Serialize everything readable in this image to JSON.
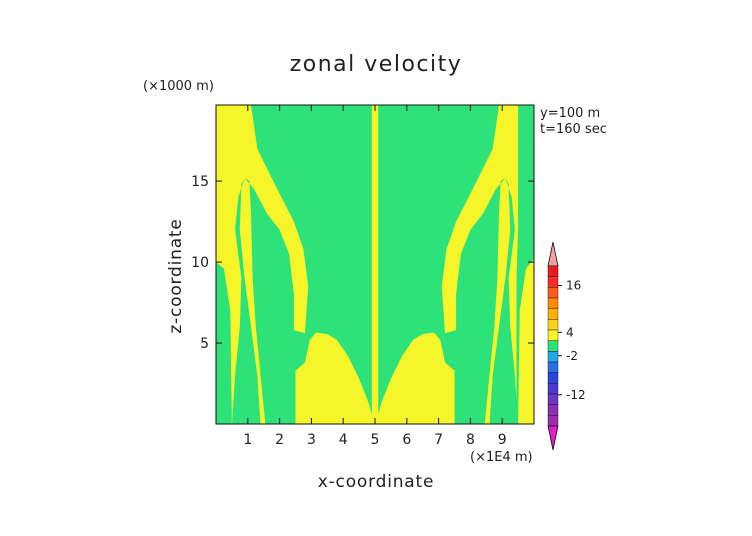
{
  "chart_data": {
    "type": "heatmap",
    "title": "zonal velocity",
    "xlabel": "x-coordinate",
    "ylabel": "z-coordinate",
    "x_unit": "(×1E4 m)",
    "z_unit": "(×1000 m)",
    "annotations": [
      "y=100 m",
      "t=160 sec"
    ],
    "xlim": [
      0,
      10
    ],
    "ylim": [
      0,
      19.7
    ],
    "x_ticks": [
      "1",
      "2",
      "3",
      "4",
      "5",
      "6",
      "7",
      "8",
      "9"
    ],
    "y_ticks": [
      "5",
      "10",
      "15"
    ],
    "grid": false,
    "colors": {
      "positive": "#f5f52a",
      "negative": "#2ee27a",
      "outline": "#111111"
    },
    "colorbar": {
      "labels": [
        "16",
        "4",
        "-2",
        "-12"
      ],
      "label_values": [
        16,
        4,
        -2,
        -12
      ],
      "range": [
        -20,
        21
      ],
      "colors": [
        "#9c2ca8",
        "#8a2fb4",
        "#6d35c4",
        "#4a39d2",
        "#2a44e0",
        "#2a6fe6",
        "#22a8e8",
        "#2ee27a",
        "#f5f52a",
        "#ffd21e",
        "#ffb000",
        "#ff8a00",
        "#ff5a1a",
        "#ff2a2a",
        "#e81c1c"
      ],
      "lower_tip_color": "#e020c8",
      "upper_tip_color": "#f5a0a0"
    },
    "regions": [
      {
        "sign": "positive",
        "points": [
          [
            0,
            19.7
          ],
          [
            1.05,
            19.7
          ],
          [
            1.15,
            17.5
          ],
          [
            1.6,
            15
          ],
          [
            2.3,
            12.5
          ],
          [
            2.6,
            10.5
          ],
          [
            2.75,
            8.5
          ],
          [
            2.8,
            6
          ],
          [
            3.15,
            5.75
          ],
          [
            3.55,
            5.6
          ],
          [
            3.95,
            5
          ],
          [
            4.3,
            3.9
          ],
          [
            4.6,
            2.5
          ],
          [
            4.85,
            1.1
          ],
          [
            4.95,
            0.3
          ],
          [
            5.05,
            0.3
          ],
          [
            5.15,
            1.1
          ],
          [
            5.4,
            2.5
          ],
          [
            5.7,
            3.9
          ],
          [
            6.05,
            5
          ],
          [
            6.45,
            5.6
          ],
          [
            6.85,
            5.75
          ],
          [
            7.2,
            6
          ],
          [
            7.25,
            8.5
          ],
          [
            7.4,
            10.5
          ],
          [
            7.7,
            12.5
          ],
          [
            8.4,
            15
          ],
          [
            8.85,
            17.5
          ],
          [
            8.95,
            19.7
          ],
          [
            10,
            19.7
          ],
          [
            10,
            10
          ],
          [
            9.75,
            9.5
          ],
          [
            9.6,
            7
          ],
          [
            9.45,
            0
          ],
          [
            8.5,
            0
          ],
          [
            8.6,
            2
          ],
          [
            8.7,
            5
          ],
          [
            8.8,
            9
          ],
          [
            8.85,
            13
          ],
          [
            8.95,
            15
          ],
          [
            9.05,
            15.2
          ],
          [
            9.2,
            14.8
          ],
          [
            9.25,
            12
          ],
          [
            9.1,
            9
          ],
          [
            8.9,
            6
          ],
          [
            8.7,
            3
          ],
          [
            8.6,
            0
          ],
          [
            7.55,
            0
          ],
          [
            7.55,
            3
          ],
          [
            7.8,
            3.8
          ],
          [
            7.9,
            5.5
          ],
          [
            8.0,
            8
          ],
          [
            8.3,
            11
          ],
          [
            8.7,
            14
          ],
          [
            9.0,
            15.2
          ],
          [
            9.2,
            14.8
          ],
          [
            9.3,
            13
          ],
          [
            9.3,
            12
          ],
          [
            9.6,
            7
          ],
          [
            9.45,
            0
          ],
          [
            8.5,
            0
          ],
          [
            8.4,
            3
          ],
          [
            8.2,
            4
          ],
          [
            7.75,
            5.5
          ],
          [
            7.55,
            7
          ],
          [
            7.45,
            10
          ],
          [
            7.15,
            12
          ],
          [
            6.7,
            14
          ],
          [
            6.2,
            16
          ],
          [
            5.8,
            18
          ],
          [
            5.7,
            19.7
          ],
          [
            5.0,
            19.7
          ],
          [
            5.0,
            0
          ],
          [
            4.9,
            0
          ],
          [
            4.9,
            19.7
          ],
          [
            4.3,
            19.7
          ],
          [
            4.2,
            18
          ],
          [
            3.8,
            16
          ],
          [
            3.3,
            14
          ],
          [
            2.85,
            12
          ],
          [
            2.55,
            10
          ],
          [
            2.45,
            7
          ],
          [
            2.25,
            5.5
          ],
          [
            1.8,
            4
          ],
          [
            1.6,
            3
          ],
          [
            1.55,
            0
          ],
          [
            0.5,
            0
          ],
          [
            0.4,
            3
          ],
          [
            0.3,
            7
          ],
          [
            0.25,
            9.5
          ],
          [
            0,
            10
          ]
        ]
      },
      {
        "sign": "negative",
        "points": [
          [
            1.1,
            19.7
          ],
          [
            4.9,
            19.7
          ],
          [
            4.9,
            0.6
          ],
          [
            4.8,
            1.3
          ],
          [
            4.5,
            2.8
          ],
          [
            4.15,
            4.2
          ],
          [
            3.8,
            5.2
          ],
          [
            3.5,
            5.55
          ],
          [
            3.15,
            5.65
          ],
          [
            2.95,
            5.2
          ],
          [
            2.8,
            3.8
          ],
          [
            2.5,
            3.3
          ],
          [
            2.5,
            0
          ],
          [
            1.55,
            0
          ],
          [
            1.4,
            3
          ],
          [
            1.25,
            6
          ],
          [
            1.15,
            9
          ],
          [
            1.1,
            13
          ],
          [
            1.05,
            15
          ],
          [
            0.9,
            15.2
          ],
          [
            0.8,
            14.8
          ],
          [
            0.75,
            12
          ],
          [
            0.9,
            9
          ],
          [
            1.1,
            6
          ],
          [
            1.3,
            3
          ],
          [
            1.4,
            0
          ],
          [
            0.5,
            0
          ],
          [
            0.6,
            3
          ],
          [
            0.75,
            6
          ],
          [
            0.8,
            9
          ],
          [
            0.6,
            12
          ],
          [
            0.7,
            14
          ],
          [
            0.9,
            15.2
          ],
          [
            1.2,
            14.5
          ],
          [
            1.6,
            13
          ],
          [
            2.0,
            12
          ],
          [
            2.3,
            10.5
          ],
          [
            2.45,
            8
          ],
          [
            2.45,
            5.8
          ],
          [
            2.8,
            5.6
          ],
          [
            2.9,
            8.5
          ],
          [
            2.75,
            10.8
          ],
          [
            2.45,
            12.5
          ],
          [
            1.8,
            15
          ],
          [
            1.3,
            17
          ],
          [
            1.1,
            19.7
          ]
        ]
      },
      {
        "sign": "negative",
        "points": [
          [
            5.1,
            19.7
          ],
          [
            8.9,
            19.7
          ],
          [
            8.7,
            17
          ],
          [
            8.2,
            15
          ],
          [
            7.55,
            12.5
          ],
          [
            7.25,
            10.8
          ],
          [
            7.1,
            8.5
          ],
          [
            7.2,
            5.6
          ],
          [
            7.55,
            5.8
          ],
          [
            7.55,
            8
          ],
          [
            7.7,
            10.5
          ],
          [
            8.0,
            12
          ],
          [
            8.4,
            13
          ],
          [
            8.8,
            14.5
          ],
          [
            9.1,
            15.2
          ],
          [
            9.3,
            14
          ],
          [
            9.4,
            12
          ],
          [
            9.2,
            9
          ],
          [
            9.25,
            6
          ],
          [
            9.4,
            3
          ],
          [
            9.5,
            0
          ],
          [
            8.6,
            0
          ],
          [
            8.7,
            3
          ],
          [
            8.9,
            6
          ],
          [
            9.1,
            9
          ],
          [
            9.25,
            12
          ],
          [
            9.2,
            14.8
          ],
          [
            9.1,
            15.2
          ],
          [
            8.95,
            15
          ],
          [
            8.9,
            13
          ],
          [
            8.85,
            9
          ],
          [
            8.75,
            6
          ],
          [
            8.6,
            3
          ],
          [
            8.45,
            0
          ],
          [
            7.5,
            0
          ],
          [
            7.5,
            3.3
          ],
          [
            7.2,
            3.8
          ],
          [
            7.05,
            5.2
          ],
          [
            6.85,
            5.65
          ],
          [
            6.5,
            5.55
          ],
          [
            6.2,
            5.2
          ],
          [
            5.85,
            4.2
          ],
          [
            5.5,
            2.8
          ],
          [
            5.2,
            1.3
          ],
          [
            5.1,
            0.6
          ]
        ]
      },
      {
        "sign": "negative",
        "points": [
          [
            9.5,
            19.7
          ],
          [
            10,
            19.7
          ],
          [
            10,
            10.2
          ],
          [
            9.75,
            9.6
          ],
          [
            9.55,
            7
          ],
          [
            9.5,
            0
          ],
          [
            9.45,
            0
          ],
          [
            9.45,
            9
          ],
          [
            9.5,
            12
          ],
          [
            9.5,
            19.7
          ]
        ]
      },
      {
        "sign": "negative",
        "points": [
          [
            0,
            10
          ],
          [
            0.25,
            9.6
          ],
          [
            0.45,
            7
          ],
          [
            0.5,
            0
          ],
          [
            0,
            0
          ]
        ]
      }
    ]
  }
}
